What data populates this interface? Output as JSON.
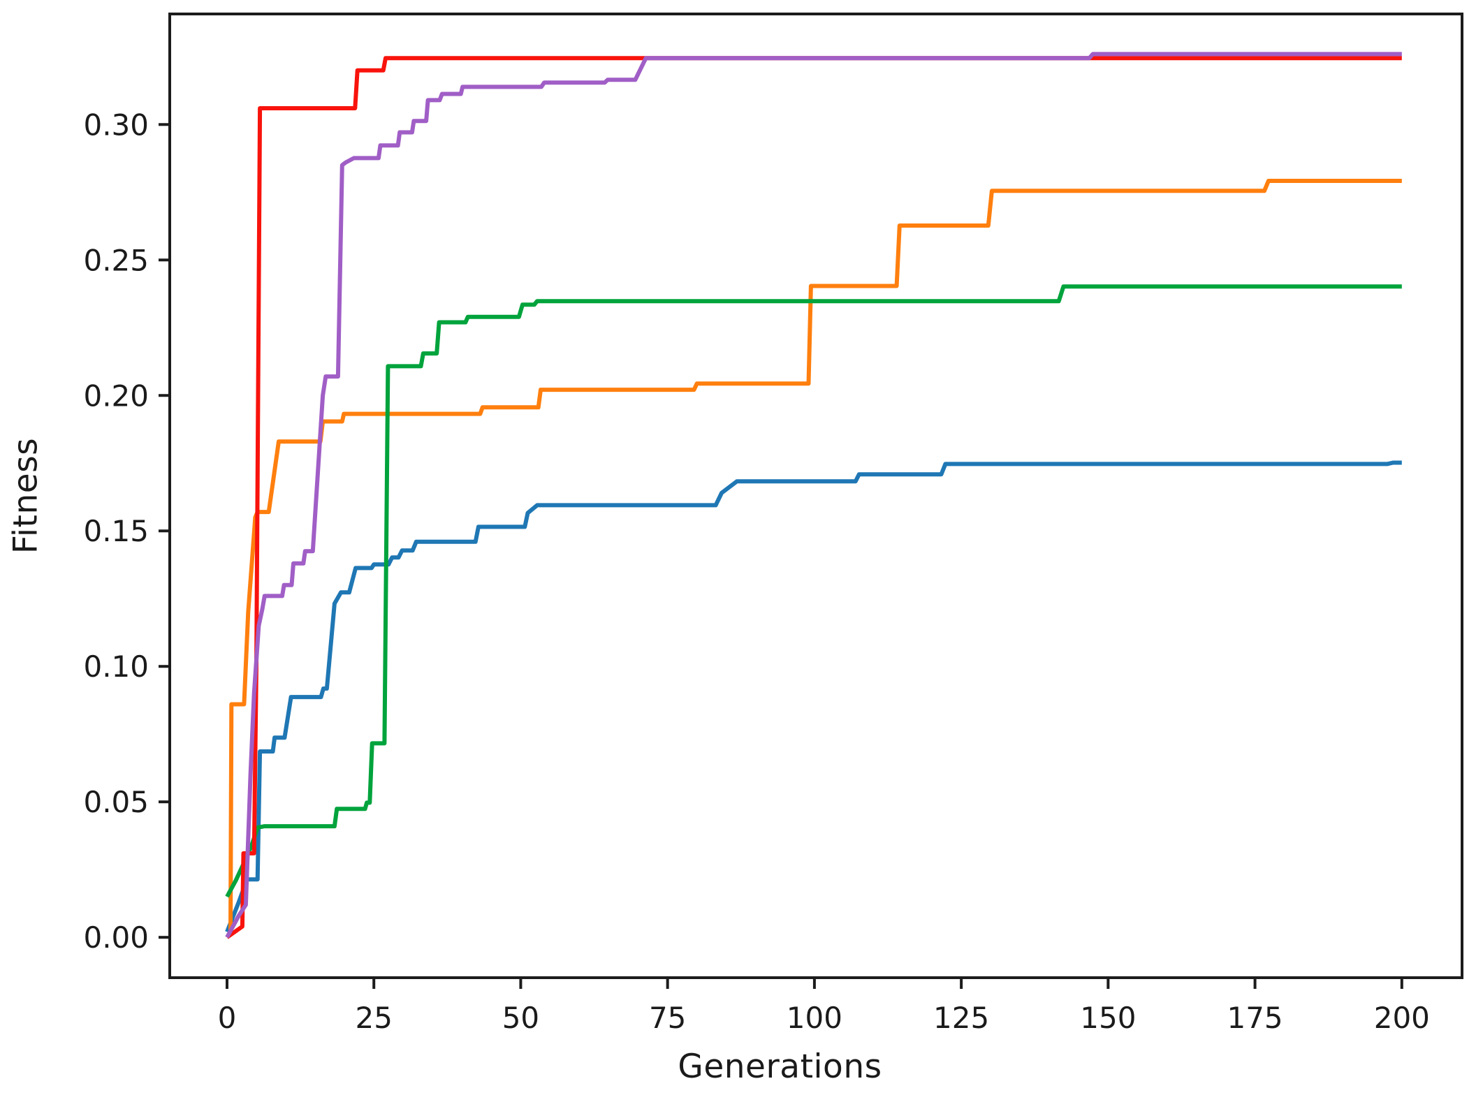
{
  "figure": {
    "background_color": "#ffffff",
    "frame_color": "#1c1c1c"
  },
  "chart_data": {
    "type": "line",
    "title": "",
    "xlabel": "Generations",
    "ylabel": "Fitness",
    "xlim": [
      -9.75,
      210.25
    ],
    "ylim": [
      -0.0149,
      0.3408
    ],
    "xticks": [
      0,
      25,
      50,
      75,
      100,
      125,
      150,
      175,
      200
    ],
    "yticks": [
      0.0,
      0.05,
      0.1,
      0.15,
      0.2,
      0.25,
      0.3
    ],
    "ytick_decimals": 2,
    "grid": false,
    "legend_position": "none",
    "series": [
      {
        "name": "blue",
        "color": "#1f77b4",
        "points": [
          [
            0,
            0.002
          ],
          [
            2.0,
            0.013
          ],
          [
            3.4,
            0.0214
          ],
          [
            5.2,
            0.0214
          ],
          [
            5.6,
            0.0686
          ],
          [
            7.8,
            0.0686
          ],
          [
            8.1,
            0.0737
          ],
          [
            9.8,
            0.0737
          ],
          [
            10.9,
            0.0887
          ],
          [
            16.0,
            0.0887
          ],
          [
            16.4,
            0.0918
          ],
          [
            17.0,
            0.0918
          ],
          [
            18.3,
            0.1232
          ],
          [
            19.4,
            0.1273
          ],
          [
            20.8,
            0.1273
          ],
          [
            21.9,
            0.1363
          ],
          [
            24.6,
            0.1363
          ],
          [
            25.0,
            0.1376
          ],
          [
            27.5,
            0.1376
          ],
          [
            28.1,
            0.1402
          ],
          [
            29.2,
            0.1402
          ],
          [
            29.8,
            0.1428
          ],
          [
            31.6,
            0.1428
          ],
          [
            32.2,
            0.146
          ],
          [
            42.3,
            0.146
          ],
          [
            42.8,
            0.1515
          ],
          [
            50.7,
            0.1515
          ],
          [
            51.2,
            0.1566
          ],
          [
            52.8,
            0.1595
          ],
          [
            83.2,
            0.1595
          ],
          [
            84.2,
            0.164
          ],
          [
            86.8,
            0.1683
          ],
          [
            107.0,
            0.1683
          ],
          [
            107.6,
            0.1709
          ],
          [
            121.6,
            0.1709
          ],
          [
            122.3,
            0.1747
          ],
          [
            197.5,
            0.1747
          ],
          [
            198.5,
            0.1752
          ],
          [
            200,
            0.1752
          ]
        ]
      },
      {
        "name": "orange",
        "color": "#ff7f0e",
        "points": [
          [
            0,
            0.0
          ],
          [
            0.6,
            0.002
          ],
          [
            0.75,
            0.086
          ],
          [
            2.9,
            0.086
          ],
          [
            3.6,
            0.12
          ],
          [
            4.8,
            0.155
          ],
          [
            5.2,
            0.157
          ],
          [
            7.1,
            0.157
          ],
          [
            8.8,
            0.183
          ],
          [
            15.9,
            0.183
          ],
          [
            16.3,
            0.1904
          ],
          [
            19.6,
            0.1904
          ],
          [
            19.9,
            0.1932
          ],
          [
            43.1,
            0.1932
          ],
          [
            43.5,
            0.1956
          ],
          [
            53.0,
            0.1956
          ],
          [
            53.4,
            0.2021
          ],
          [
            79.5,
            0.2021
          ],
          [
            80.0,
            0.2044
          ],
          [
            99.0,
            0.2044
          ],
          [
            99.4,
            0.2404
          ],
          [
            114.0,
            0.2404
          ],
          [
            114.5,
            0.2627
          ],
          [
            129.6,
            0.2627
          ],
          [
            130.2,
            0.2755
          ],
          [
            176.6,
            0.2755
          ],
          [
            177.3,
            0.2792
          ],
          [
            200,
            0.2792
          ]
        ]
      },
      {
        "name": "green",
        "color": "#00a33c",
        "points": [
          [
            0,
            0.015
          ],
          [
            1.5,
            0.021
          ],
          [
            3.0,
            0.028
          ],
          [
            4.2,
            0.034
          ],
          [
            5.2,
            0.0405
          ],
          [
            6.4,
            0.041
          ],
          [
            18.3,
            0.041
          ],
          [
            18.7,
            0.0474
          ],
          [
            23.5,
            0.0474
          ],
          [
            23.8,
            0.0497
          ],
          [
            24.3,
            0.0497
          ],
          [
            24.7,
            0.0716
          ],
          [
            26.8,
            0.0716
          ],
          [
            27.4,
            0.2108
          ],
          [
            33.0,
            0.2108
          ],
          [
            33.4,
            0.2155
          ],
          [
            35.7,
            0.2155
          ],
          [
            36.1,
            0.227
          ],
          [
            40.6,
            0.227
          ],
          [
            41.0,
            0.229
          ],
          [
            49.7,
            0.229
          ],
          [
            50.3,
            0.2335
          ],
          [
            52.3,
            0.2335
          ],
          [
            52.8,
            0.2348
          ],
          [
            141.6,
            0.2348
          ],
          [
            142.4,
            0.2402
          ],
          [
            200,
            0.2402
          ]
        ]
      },
      {
        "name": "red",
        "color": "#f8130c",
        "points": [
          [
            0,
            0.0
          ],
          [
            2.6,
            0.004
          ],
          [
            2.8,
            0.031
          ],
          [
            4.6,
            0.031
          ],
          [
            5.0,
            0.1
          ],
          [
            5.6,
            0.306
          ],
          [
            21.8,
            0.306
          ],
          [
            22.2,
            0.32
          ],
          [
            26.6,
            0.32
          ],
          [
            27.0,
            0.3245
          ],
          [
            200,
            0.3245
          ]
        ]
      },
      {
        "name": "purple",
        "color": "#a05ec6",
        "points": [
          [
            0,
            0.0
          ],
          [
            2.0,
            0.008
          ],
          [
            3.2,
            0.012
          ],
          [
            4.0,
            0.06
          ],
          [
            4.6,
            0.09
          ],
          [
            5.4,
            0.115
          ],
          [
            6.0,
            0.121
          ],
          [
            6.4,
            0.126
          ],
          [
            9.4,
            0.126
          ],
          [
            9.7,
            0.13
          ],
          [
            11.0,
            0.13
          ],
          [
            11.3,
            0.138
          ],
          [
            13.0,
            0.138
          ],
          [
            13.3,
            0.1425
          ],
          [
            14.6,
            0.1425
          ],
          [
            16.3,
            0.2
          ],
          [
            16.8,
            0.207
          ],
          [
            18.9,
            0.207
          ],
          [
            19.6,
            0.285
          ],
          [
            20.2,
            0.286
          ],
          [
            21.6,
            0.2876
          ],
          [
            25.8,
            0.2876
          ],
          [
            26.1,
            0.2923
          ],
          [
            29.1,
            0.2923
          ],
          [
            29.4,
            0.2971
          ],
          [
            31.5,
            0.2971
          ],
          [
            31.8,
            0.3013
          ],
          [
            33.9,
            0.3013
          ],
          [
            34.2,
            0.309
          ],
          [
            36.2,
            0.309
          ],
          [
            36.6,
            0.3113
          ],
          [
            39.8,
            0.3113
          ],
          [
            40.1,
            0.3139
          ],
          [
            53.5,
            0.3139
          ],
          [
            54.0,
            0.3155
          ],
          [
            64.3,
            0.3155
          ],
          [
            64.8,
            0.3165
          ],
          [
            69.5,
            0.3165
          ],
          [
            71.3,
            0.3245
          ],
          [
            146.8,
            0.3245
          ],
          [
            147.4,
            0.326
          ],
          [
            200,
            0.326
          ]
        ]
      }
    ]
  }
}
